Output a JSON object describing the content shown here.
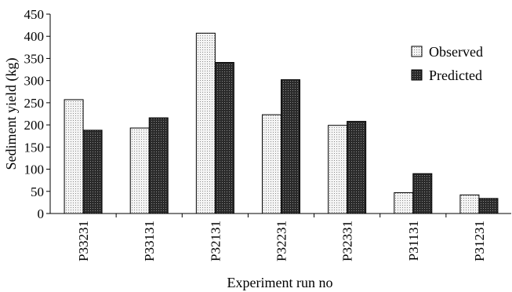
{
  "chart_data": {
    "type": "bar",
    "title": "",
    "xlabel": "Experiment run no",
    "ylabel": "Sediment yield (kg)",
    "categories": [
      "P33231",
      "P33131",
      "P32131",
      "P32231",
      "P32331",
      "P31131",
      "P31231"
    ],
    "series": [
      {
        "name": "Observed",
        "values": [
          257,
          193,
          407,
          223,
          199,
          47,
          42
        ],
        "pattern": "light-dotted",
        "color": "#e6e6e6"
      },
      {
        "name": "Predicted",
        "values": [
          188,
          216,
          341,
          302,
          208,
          90,
          34
        ],
        "pattern": "dark-dotted",
        "color": "#3a3a3a"
      }
    ],
    "ylim": [
      0,
      450
    ],
    "yticks": [
      "0",
      "50",
      "100",
      "150",
      "200",
      "250",
      "300",
      "350",
      "400",
      "450"
    ],
    "grid": false,
    "legend": "right"
  }
}
